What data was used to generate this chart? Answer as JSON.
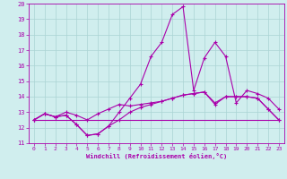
{
  "xlabel": "Windchill (Refroidissement éolien,°C)",
  "xlim": [
    -0.5,
    23.5
  ],
  "ylim": [
    11,
    20
  ],
  "yticks": [
    11,
    12,
    13,
    14,
    15,
    16,
    17,
    18,
    19,
    20
  ],
  "xticks": [
    0,
    1,
    2,
    3,
    4,
    5,
    6,
    7,
    8,
    9,
    10,
    11,
    12,
    13,
    14,
    15,
    16,
    17,
    18,
    19,
    20,
    21,
    22,
    23
  ],
  "bg_color": "#d0eeee",
  "grid_color": "#aad4d4",
  "line_color": "#aa00aa",
  "series1_x": [
    0,
    1,
    2,
    3,
    4,
    5,
    6,
    7,
    8,
    9,
    10,
    11,
    12,
    13,
    14,
    15,
    16,
    17,
    18,
    19,
    20,
    21,
    22,
    23
  ],
  "series1_y": [
    12.5,
    12.9,
    12.7,
    12.8,
    12.2,
    11.5,
    11.6,
    12.1,
    12.5,
    13.0,
    13.3,
    13.5,
    13.7,
    13.9,
    14.1,
    14.2,
    14.3,
    13.6,
    14.0,
    14.0,
    14.0,
    13.9,
    13.2,
    12.5
  ],
  "series2_x": [
    0,
    1,
    2,
    3,
    4,
    5,
    6,
    7,
    8,
    9,
    10,
    11,
    12,
    13,
    14,
    15,
    16,
    17,
    18,
    19,
    20,
    21,
    22,
    23
  ],
  "series2_y": [
    12.5,
    12.9,
    12.7,
    12.8,
    12.2,
    11.5,
    11.6,
    12.1,
    13.0,
    13.9,
    14.8,
    16.6,
    17.5,
    19.3,
    19.8,
    14.4,
    16.5,
    17.5,
    16.6,
    13.6,
    14.4,
    14.2,
    13.9,
    13.2
  ],
  "series3_x": [
    0,
    1,
    2,
    3,
    4,
    5,
    6,
    7,
    8,
    9,
    10,
    11,
    12,
    13,
    14,
    15,
    16,
    17,
    18,
    19,
    20,
    21,
    22,
    23
  ],
  "series3_y": [
    12.5,
    12.9,
    12.7,
    13.0,
    12.8,
    12.5,
    12.9,
    13.2,
    13.5,
    13.4,
    13.5,
    13.6,
    13.7,
    13.9,
    14.1,
    14.2,
    14.3,
    13.5,
    14.0,
    14.0,
    14.0,
    13.9,
    13.2,
    12.5
  ],
  "series4_x": [
    0,
    1,
    2,
    3,
    4,
    5,
    6,
    7,
    8,
    9,
    10,
    11,
    12,
    13,
    14,
    15,
    16,
    17,
    18,
    19,
    20,
    21,
    22,
    23
  ],
  "series4_y": [
    12.5,
    12.5,
    12.5,
    12.5,
    12.5,
    12.5,
    12.5,
    12.5,
    12.5,
    12.5,
    12.5,
    12.5,
    12.5,
    12.5,
    12.5,
    12.5,
    12.5,
    12.5,
    12.5,
    12.5,
    12.5,
    12.5,
    12.5,
    12.5
  ]
}
